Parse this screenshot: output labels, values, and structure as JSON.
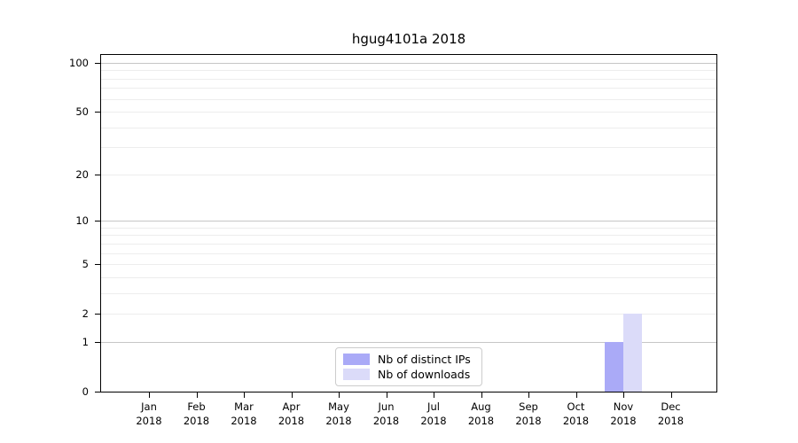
{
  "title": "hgug4101a 2018",
  "chart_data": {
    "type": "bar",
    "title": "hgug4101a 2018",
    "xlabel": "",
    "ylabel": "",
    "year": "2018",
    "categories": [
      "Jan",
      "Feb",
      "Mar",
      "Apr",
      "May",
      "Jun",
      "Jul",
      "Aug",
      "Sep",
      "Oct",
      "Nov",
      "Dec"
    ],
    "series": [
      {
        "name": "Nb of distinct IPs",
        "color": "#aaaaf7",
        "values": [
          0,
          0,
          0,
          0,
          0,
          0,
          0,
          0,
          0,
          0,
          1,
          0
        ]
      },
      {
        "name": "Nb of downloads",
        "color": "#dbdbf9",
        "values": [
          0,
          0,
          0,
          0,
          0,
          0,
          0,
          0,
          0,
          0,
          2,
          0
        ]
      }
    ],
    "yscale": "log1p",
    "ylim": [
      0,
      112
    ],
    "yticks": [
      0,
      1,
      2,
      5,
      10,
      20,
      50,
      100
    ],
    "major_gridlines": [
      1,
      10,
      100
    ],
    "minor_gridlines": [
      2,
      3,
      4,
      5,
      6,
      7,
      8,
      9,
      20,
      30,
      40,
      50,
      60,
      70,
      80,
      90
    ],
    "grid": true,
    "legend_position": "lower center"
  },
  "colors": {
    "bar_distinct_ips": "#aaaaf7",
    "bar_downloads": "#dbdbf9",
    "gridline_minor": "#ededed",
    "gridline_major": "#c6c6c6",
    "spine": "#000000",
    "legend_border": "#cccccc"
  }
}
